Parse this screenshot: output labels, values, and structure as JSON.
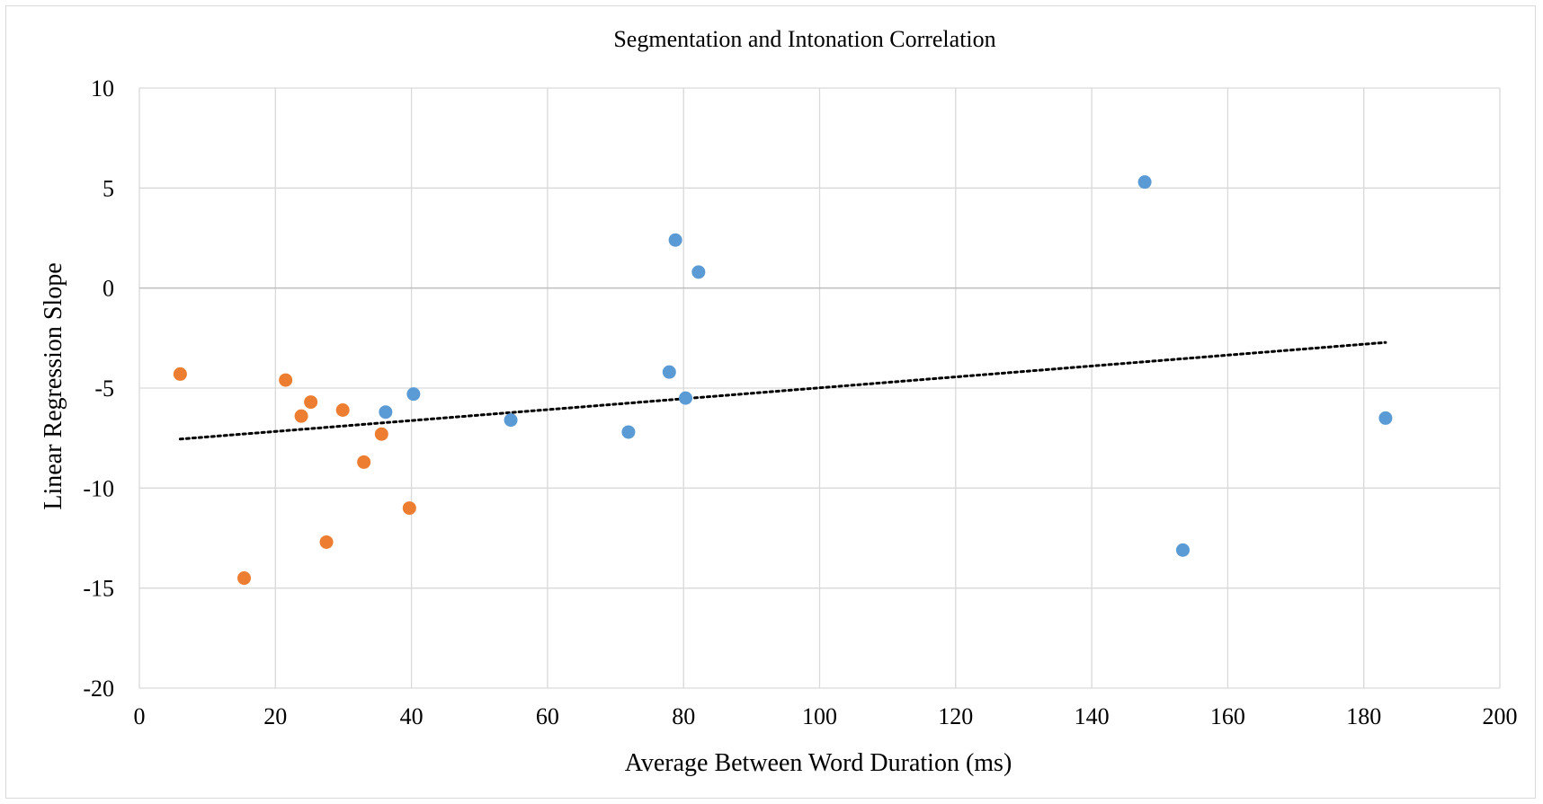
{
  "chart_data": {
    "type": "scatter",
    "title": "Segmentation and Intonation Correlation",
    "xlabel": "Average Between Word Duration (ms)",
    "ylabel": "Linear Regression Slope",
    "xlim": [
      0,
      200
    ],
    "ylim": [
      -20,
      10
    ],
    "x_ticks": [
      0,
      20,
      40,
      60,
      80,
      100,
      120,
      140,
      160,
      180,
      200
    ],
    "y_ticks": [
      10,
      5,
      0,
      -5,
      -10,
      -15,
      -20
    ],
    "grid": true,
    "legend": "none",
    "series": [
      {
        "color": "#5b9bd5",
        "points": [
          {
            "x": 36.2,
            "y": -6.2
          },
          {
            "x": 40.3,
            "y": -5.3
          },
          {
            "x": 54.6,
            "y": -6.6
          },
          {
            "x": 71.9,
            "y": -7.2
          },
          {
            "x": 77.9,
            "y": -4.2
          },
          {
            "x": 78.8,
            "y": 2.4
          },
          {
            "x": 80.3,
            "y": -5.5
          },
          {
            "x": 82.2,
            "y": 0.8
          },
          {
            "x": 147.8,
            "y": 5.3
          },
          {
            "x": 153.4,
            "y": -13.1
          },
          {
            "x": 183.2,
            "y": -6.5
          }
        ]
      },
      {
        "color": "#ed7d31",
        "points": [
          {
            "x": 6.0,
            "y": -4.3
          },
          {
            "x": 15.4,
            "y": -14.5
          },
          {
            "x": 21.5,
            "y": -4.6
          },
          {
            "x": 23.8,
            "y": -6.4
          },
          {
            "x": 25.2,
            "y": -5.7
          },
          {
            "x": 27.5,
            "y": -12.7
          },
          {
            "x": 29.9,
            "y": -6.1
          },
          {
            "x": 33.0,
            "y": -8.7
          },
          {
            "x": 35.6,
            "y": -7.3
          },
          {
            "x": 39.7,
            "y": -11.0
          }
        ]
      }
    ],
    "trendline": {
      "style": "dotted",
      "color": "#000000",
      "x_start": 6.0,
      "y_start": -7.55,
      "x_end": 183.2,
      "y_end": -2.72
    }
  }
}
